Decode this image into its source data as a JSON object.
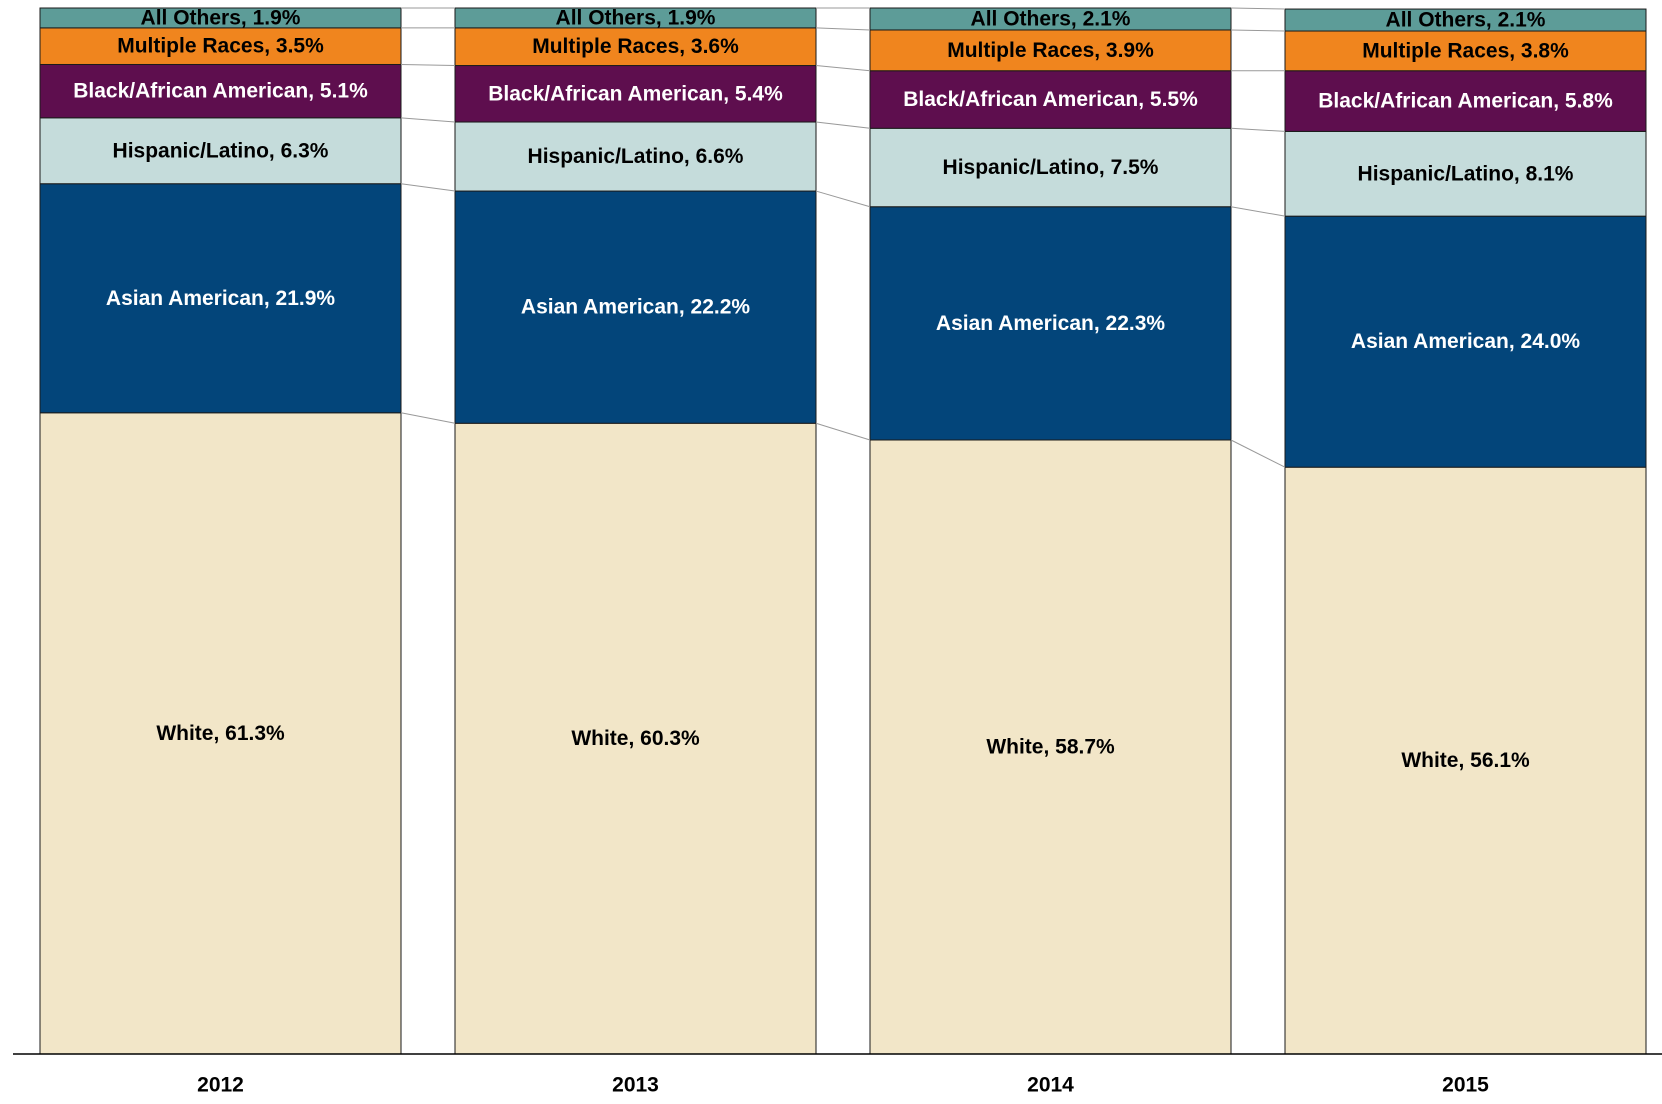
{
  "chart_data": {
    "type": "stacked_bar",
    "categories": [
      "2012",
      "2013",
      "2014",
      "2015"
    ],
    "ylim": [
      0,
      100
    ],
    "series": [
      {
        "color": "#F2E6C8",
        "label_color": "#000000",
        "values": [
          61.3,
          60.3,
          58.7,
          56.1
        ],
        "value_labels": [
          "White, 61.3%",
          "White, 60.3%",
          "White, 58.7%",
          "White, 56.1%"
        ]
      },
      {
        "color": "#03457A",
        "label_color": "#ffffff",
        "values": [
          21.9,
          22.2,
          22.3,
          24.0
        ],
        "value_labels": [
          "Asian American, 21.9%",
          "Asian American, 22.2%",
          "Asian American, 22.3%",
          "Asian American, 24.0%"
        ]
      },
      {
        "color": "#C5DCDB",
        "label_color": "#000000",
        "values": [
          6.3,
          6.6,
          7.5,
          8.1
        ],
        "value_labels": [
          "Hispanic/Latino, 6.3%",
          "Hispanic/Latino, 6.6%",
          "Hispanic/Latino, 7.5%",
          "Hispanic/Latino, 8.1%"
        ]
      },
      {
        "color": "#5E0E4E",
        "label_color": "#ffffff",
        "values": [
          5.1,
          5.4,
          5.5,
          5.8
        ],
        "value_labels": [
          "Black/African American, 5.1%",
          "Black/African American, 5.4%",
          "Black/African American, 5.5%",
          "Black/African American, 5.8%"
        ]
      },
      {
        "color": "#F0851E",
        "label_color": "#000000",
        "values": [
          3.5,
          3.6,
          3.9,
          3.8
        ],
        "value_labels": [
          "Multiple Races, 3.5%",
          "Multiple Races, 3.6%",
          "Multiple Races, 3.9%",
          "Multiple Races, 3.8%"
        ]
      },
      {
        "color": "#5D9C98",
        "label_color": "#000000",
        "values": [
          1.9,
          1.9,
          2.1,
          2.1
        ],
        "value_labels": [
          "All Others, 1.9%",
          "All Others, 1.9%",
          "All Others, 2.1%",
          "All Others, 2.1%"
        ]
      }
    ]
  }
}
